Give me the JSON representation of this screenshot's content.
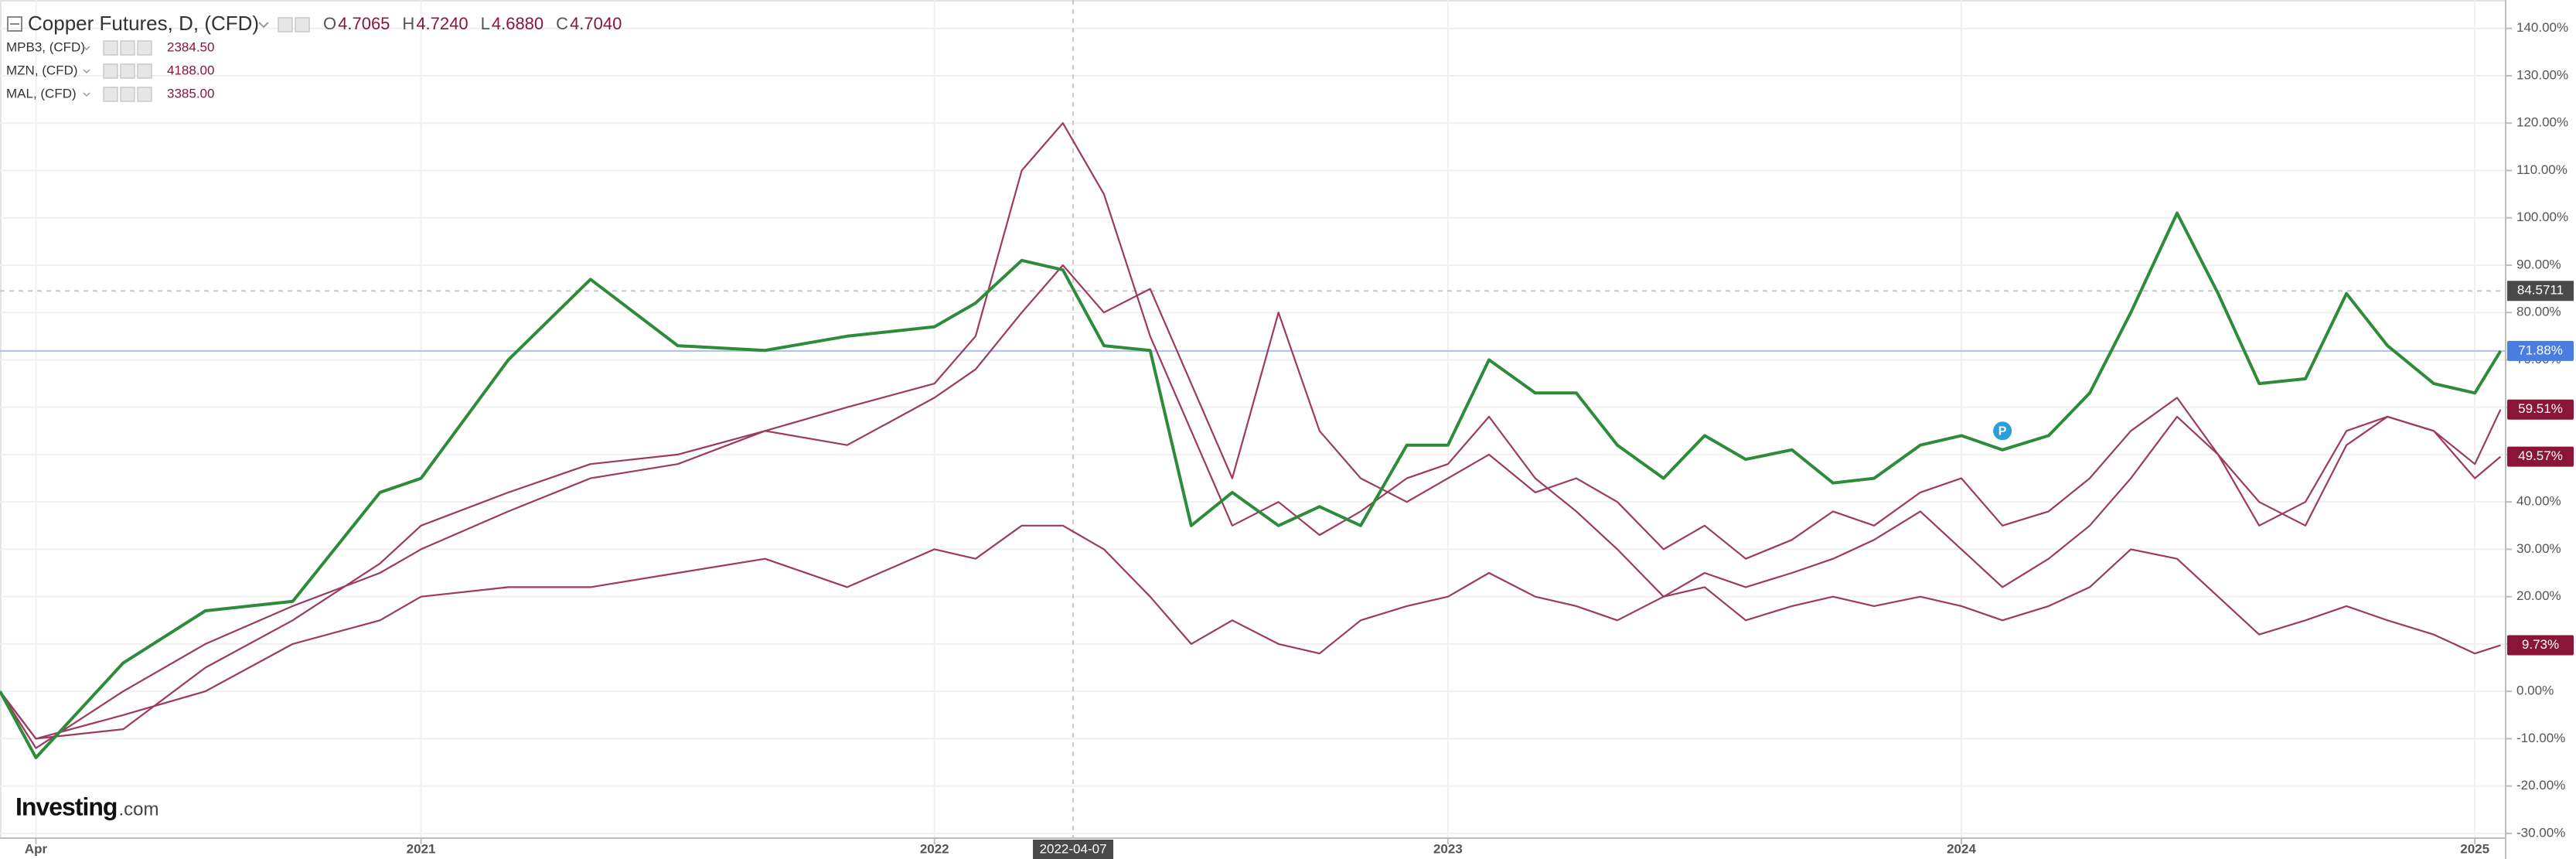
{
  "chart_data": {
    "type": "line",
    "x": [
      2020.18,
      2020.25,
      2020.42,
      2020.58,
      2020.75,
      2020.92,
      2021.0,
      2021.17,
      2021.33,
      2021.5,
      2021.67,
      2021.83,
      2022.0,
      2022.08,
      2022.17,
      2022.25,
      2022.33,
      2022.42,
      2022.5,
      2022.58,
      2022.67,
      2022.75,
      2022.83,
      2022.92,
      2023.0,
      2023.08,
      2023.17,
      2023.25,
      2023.33,
      2023.42,
      2023.5,
      2023.58,
      2023.67,
      2023.75,
      2023.83,
      2023.92,
      2024.0,
      2024.08,
      2024.17,
      2024.25,
      2024.33,
      2024.42,
      2024.5,
      2024.58,
      2024.67,
      2024.75,
      2024.83,
      2024.92,
      2025.0,
      2025.05
    ],
    "series": [
      {
        "name": "Copper Futures, D, (CFD)",
        "color": "#2e8b3a",
        "badge_color": "#4a7de0",
        "ohlc": [
          {
            "key": "O",
            "value": "4.7065"
          },
          {
            "key": "H",
            "value": "4.7240"
          },
          {
            "key": "L",
            "value": "4.6880"
          },
          {
            "key": "C",
            "value": "4.7040"
          }
        ],
        "values": [
          0,
          -14,
          6,
          17,
          19,
          42,
          45,
          70,
          87,
          73,
          72,
          75,
          77,
          82,
          91,
          89,
          73,
          72,
          35,
          42,
          35,
          39,
          35,
          52,
          52,
          70,
          63,
          63,
          52,
          45,
          54,
          49,
          51,
          44,
          45,
          52,
          54,
          51,
          54,
          63,
          80,
          101,
          84,
          65,
          66,
          84,
          73,
          65,
          63,
          71.88
        ],
        "last_label": "71.88%"
      },
      {
        "name": "MPB3, (CFD)",
        "price": "2384.50",
        "color": "#9c3a62",
        "badge_color": "#8b1538",
        "values": [
          0,
          -10,
          -8,
          5,
          15,
          27,
          35,
          42,
          48,
          50,
          55,
          60,
          65,
          75,
          110,
          120,
          105,
          75,
          55,
          35,
          40,
          33,
          38,
          45,
          48,
          58,
          45,
          38,
          30,
          20,
          25,
          22,
          25,
          28,
          32,
          38,
          30,
          22,
          28,
          35,
          45,
          58,
          50,
          40,
          35,
          52,
          58,
          55,
          48,
          59.51
        ],
        "last_label": "59.51%"
      },
      {
        "name": "MZN, (CFD)",
        "price": "4188.00",
        "color": "#9c3a62",
        "badge_color": "#8b1538",
        "values": [
          0,
          -12,
          0,
          10,
          18,
          25,
          30,
          38,
          45,
          48,
          55,
          52,
          62,
          68,
          80,
          90,
          80,
          85,
          65,
          45,
          80,
          55,
          45,
          40,
          45,
          50,
          42,
          45,
          40,
          30,
          35,
          28,
          32,
          38,
          35,
          42,
          45,
          35,
          38,
          45,
          55,
          62,
          50,
          35,
          40,
          55,
          58,
          55,
          45,
          49.57
        ],
        "last_label": "49.57%"
      },
      {
        "name": "MAL, (CFD)",
        "price": "3385.00",
        "color": "#9c3a62",
        "badge_color": "#8b1538",
        "values": [
          0,
          -10,
          -5,
          0,
          10,
          15,
          20,
          22,
          22,
          25,
          28,
          22,
          30,
          28,
          35,
          35,
          30,
          20,
          10,
          15,
          10,
          8,
          15,
          18,
          20,
          25,
          20,
          18,
          15,
          20,
          22,
          15,
          18,
          20,
          18,
          20,
          18,
          15,
          18,
          22,
          30,
          28,
          20,
          12,
          15,
          18,
          15,
          12,
          8,
          9.73
        ],
        "last_label": "9.73%"
      }
    ],
    "xlim": [
      2020.18,
      2025.06
    ],
    "xticks": [
      {
        "value": 2020.25,
        "label": "Apr"
      },
      2021,
      2022,
      2023,
      2024,
      2025
    ],
    "ylim": [
      -31,
      146
    ],
    "yticks": [
      {
        "value": -30,
        "label": "-30.00%"
      },
      {
        "value": -20,
        "label": "-20.00%"
      },
      {
        "value": -10,
        "label": "-10.00%"
      },
      {
        "value": 0,
        "label": "0.00%"
      },
      {
        "value": 10,
        "label": "10.00%"
      },
      {
        "value": 20,
        "label": "20.00%"
      },
      {
        "value": 30,
        "label": "30.00%"
      },
      {
        "value": 40,
        "label": "40.00%"
      },
      {
        "value": 50,
        "label": "50.00%"
      },
      {
        "value": 60,
        "label": "60.00%"
      },
      {
        "value": 70,
        "label": "70.00%"
      },
      {
        "value": 80,
        "label": "80.00%"
      },
      {
        "value": 90,
        "label": "90.00%"
      },
      {
        "value": 100,
        "label": "100.00%"
      },
      {
        "value": 110,
        "label": "110.00%"
      },
      {
        "value": 120,
        "label": "120.00%"
      },
      {
        "value": 130,
        "label": "130.00%"
      },
      {
        "value": 140,
        "label": "140.00%"
      }
    ],
    "grid": true,
    "crosshair": {
      "x": 2022.27,
      "x_label": "2022-04-07",
      "y": 84.5711
    },
    "event_marker": {
      "x": 2024.08,
      "y": 55,
      "label": "P"
    },
    "logo": {
      "brand": "Investing",
      "suffix": ".com"
    }
  }
}
